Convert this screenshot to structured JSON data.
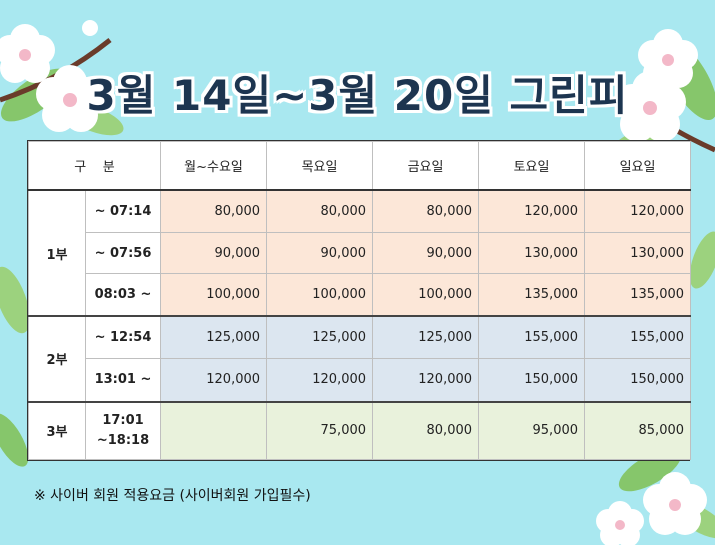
{
  "title": "3월 14일~3월 20일 그린피",
  "table": {
    "header": {
      "category": "구    분",
      "days": [
        "월~수요일",
        "목요일",
        "금요일",
        "토요일",
        "일요일"
      ]
    },
    "groups": [
      {
        "part": "1부",
        "rows": [
          {
            "time": "~ 07:14",
            "prices": [
              "80,000",
              "80,000",
              "80,000",
              "120,000",
              "120,000"
            ]
          },
          {
            "time": "~ 07:56",
            "prices": [
              "90,000",
              "90,000",
              "90,000",
              "130,000",
              "130,000"
            ]
          },
          {
            "time": "08:03 ~",
            "prices": [
              "100,000",
              "100,000",
              "100,000",
              "135,000",
              "135,000"
            ]
          }
        ]
      },
      {
        "part": "2부",
        "rows": [
          {
            "time": "~ 12:54",
            "prices": [
              "125,000",
              "125,000",
              "125,000",
              "155,000",
              "155,000"
            ]
          },
          {
            "time": "13:01 ~",
            "prices": [
              "120,000",
              "120,000",
              "120,000",
              "150,000",
              "150,000"
            ]
          }
        ]
      },
      {
        "part": "3부",
        "rows": [
          {
            "time_line1": "17:01",
            "time_line2": "~18:18",
            "prices": [
              "",
              "75,000",
              "80,000",
              "95,000",
              "85,000"
            ]
          }
        ]
      }
    ]
  },
  "note": "※ 사이버 회원 적용요금 (사이버회원 가입필수)",
  "colors": {
    "background": "#a9e8f0",
    "part1_fill": "#fce7d8",
    "part2_fill": "#dce6f0",
    "part3_fill": "#e9f2dc",
    "title_text": "#1d3550"
  }
}
